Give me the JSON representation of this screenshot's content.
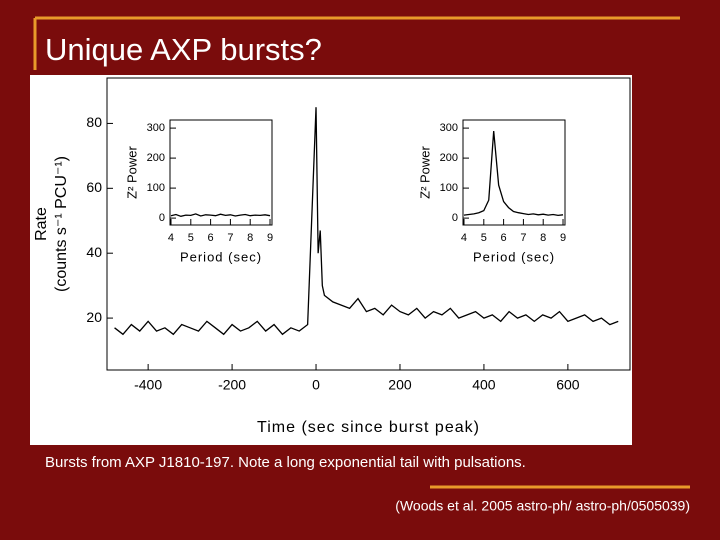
{
  "slide": {
    "title": "Unique AXP bursts?",
    "caption": "Bursts from AXP J1810-197. Note a long exponential tail with pulsations.",
    "citation": "(Woods et al. 2005 astro-ph/ astro-ph/0505039)"
  },
  "chart_data": [
    {
      "type": "line",
      "xlabel": "Time (sec since burst peak)",
      "ylabel": [
        "Rate",
        "(counts s⁻¹ PCU⁻¹)"
      ],
      "x": [
        -480,
        -460,
        -440,
        -420,
        -400,
        -380,
        -360,
        -340,
        -320,
        -300,
        -280,
        -260,
        -240,
        -220,
        -200,
        -180,
        -160,
        -140,
        -120,
        -100,
        -80,
        -60,
        -40,
        -20,
        0,
        5,
        10,
        15,
        20,
        40,
        60,
        80,
        100,
        120,
        140,
        160,
        180,
        200,
        220,
        240,
        260,
        280,
        300,
        320,
        340,
        360,
        380,
        400,
        420,
        440,
        460,
        480,
        500,
        520,
        540,
        560,
        580,
        600,
        620,
        640,
        660,
        680,
        700,
        720
      ],
      "series": [
        {
          "color": "#000000",
          "values": [
            17,
            15,
            18,
            16,
            19,
            16,
            17,
            15,
            18,
            17,
            16,
            19,
            17,
            15,
            18,
            16,
            17,
            19,
            16,
            18,
            15,
            17,
            16,
            18,
            85,
            40,
            47,
            30,
            27,
            25,
            24,
            23,
            26,
            22,
            23,
            21,
            24,
            22,
            21,
            23,
            20,
            22,
            21,
            23,
            20,
            21,
            22,
            20,
            21,
            19,
            22,
            20,
            21,
            19,
            21,
            20,
            22,
            19,
            20,
            21,
            19,
            20,
            18,
            19
          ]
        }
      ],
      "xlim": [
        -498,
        748
      ],
      "ylim": [
        4,
        94
      ],
      "xticks": [
        -400,
        -200,
        0,
        200,
        400,
        600
      ],
      "yticks": [
        20,
        40,
        60,
        80
      ]
    },
    {
      "type": "line",
      "xlabel": "Period (sec)",
      "ylabel": "Z² Power",
      "x": [
        4,
        4.25,
        4.5,
        4.75,
        5,
        5.25,
        5.5,
        5.75,
        6,
        6.25,
        6.5,
        6.75,
        7,
        7.25,
        7.5,
        7.75,
        8,
        8.25,
        8.5,
        8.75,
        9
      ],
      "series": [
        {
          "color": "#000000",
          "values": [
            8,
            12,
            6,
            10,
            9,
            14,
            7,
            11,
            10,
            8,
            13,
            9,
            11,
            7,
            10,
            12,
            8,
            10,
            9,
            11,
            8
          ]
        }
      ],
      "xlim": [
        3.95,
        9.1
      ],
      "ylim": [
        -23,
        327
      ],
      "xticks": [
        4,
        5,
        6,
        7,
        8,
        9
      ],
      "yticks": [
        0,
        100,
        200,
        300
      ]
    },
    {
      "type": "line",
      "xlabel": "Period (sec)",
      "ylabel": "Z² Power",
      "x": [
        4,
        4.25,
        4.5,
        4.75,
        5,
        5.25,
        5.5,
        5.75,
        6,
        6.25,
        6.5,
        6.75,
        7,
        7.25,
        7.5,
        7.75,
        8,
        8.25,
        8.5,
        8.75,
        9
      ],
      "series": [
        {
          "color": "#000000",
          "values": [
            10,
            12,
            14,
            18,
            25,
            60,
            290,
            110,
            55,
            35,
            22,
            18,
            15,
            12,
            14,
            11,
            13,
            10,
            12,
            9,
            11
          ]
        }
      ],
      "xlim": [
        3.95,
        9.1
      ],
      "ylim": [
        -23,
        327
      ],
      "xticks": [
        4,
        5,
        6,
        7,
        8,
        9
      ],
      "yticks": [
        0,
        100,
        200,
        300
      ]
    }
  ]
}
